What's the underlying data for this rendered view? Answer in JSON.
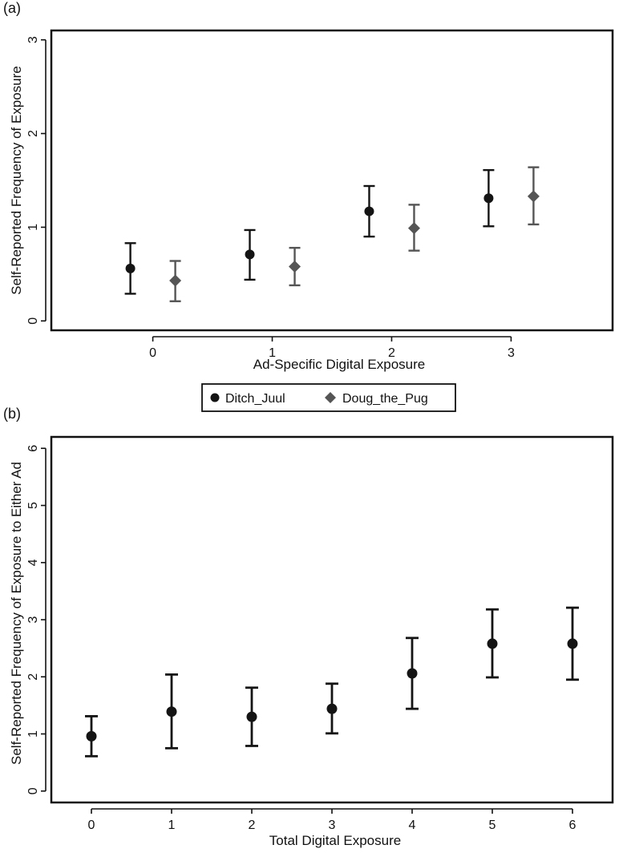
{
  "chart_data": [
    {
      "panel_label": "(a)",
      "type": "scatter",
      "error_bars": true,
      "xlabel": "Ad-Specific Digital Exposure",
      "ylabel": "Self-Reported Frequency of Exposure",
      "xticks": [
        "0",
        "1",
        "2",
        "3"
      ],
      "yticks": [
        "0",
        "1",
        "2",
        "3"
      ],
      "xlim": [
        -0.85,
        3.85
      ],
      "ylim": [
        -0.1,
        3.1
      ],
      "grid": false,
      "legend_position": "bottom-center",
      "series": [
        {
          "name": "Ditch_Juul",
          "marker": "circle",
          "color": "#141414",
          "x": [
            0,
            1,
            2,
            3
          ],
          "y": [
            0.56,
            0.71,
            1.17,
            1.31
          ],
          "lower": [
            0.29,
            0.44,
            0.9,
            1.01
          ],
          "upper": [
            0.83,
            0.97,
            1.44,
            1.61
          ]
        },
        {
          "name": "Doug_the_Pug",
          "marker": "diamond",
          "color": "#555555",
          "x": [
            0,
            1,
            2,
            3
          ],
          "y": [
            0.43,
            0.58,
            0.99,
            1.33
          ],
          "lower": [
            0.21,
            0.38,
            0.75,
            1.03
          ],
          "upper": [
            0.64,
            0.78,
            1.24,
            1.64
          ]
        }
      ]
    },
    {
      "panel_label": "(b)",
      "type": "scatter",
      "error_bars": true,
      "xlabel": "Total Digital Exposure",
      "ylabel": "Self-Reported Frequency of Exposure to Either Ad",
      "xticks": [
        "0",
        "1",
        "2",
        "3",
        "4",
        "5",
        "6"
      ],
      "yticks": [
        "0",
        "1",
        "2",
        "3",
        "4",
        "5",
        "6"
      ],
      "xlim": [
        -0.5,
        6.5
      ],
      "ylim": [
        -0.2,
        6.2
      ],
      "grid": false,
      "series": [
        {
          "marker": "circle",
          "color": "#141414",
          "x": [
            0,
            1,
            2,
            3,
            4,
            5,
            6
          ],
          "y": [
            0.96,
            1.39,
            1.3,
            1.44,
            2.06,
            2.58,
            2.58
          ],
          "lower": [
            0.61,
            0.75,
            0.79,
            1.01,
            1.44,
            1.99,
            1.95
          ],
          "upper": [
            1.31,
            2.04,
            1.81,
            1.88,
            2.68,
            3.18,
            3.21
          ]
        }
      ]
    }
  ]
}
